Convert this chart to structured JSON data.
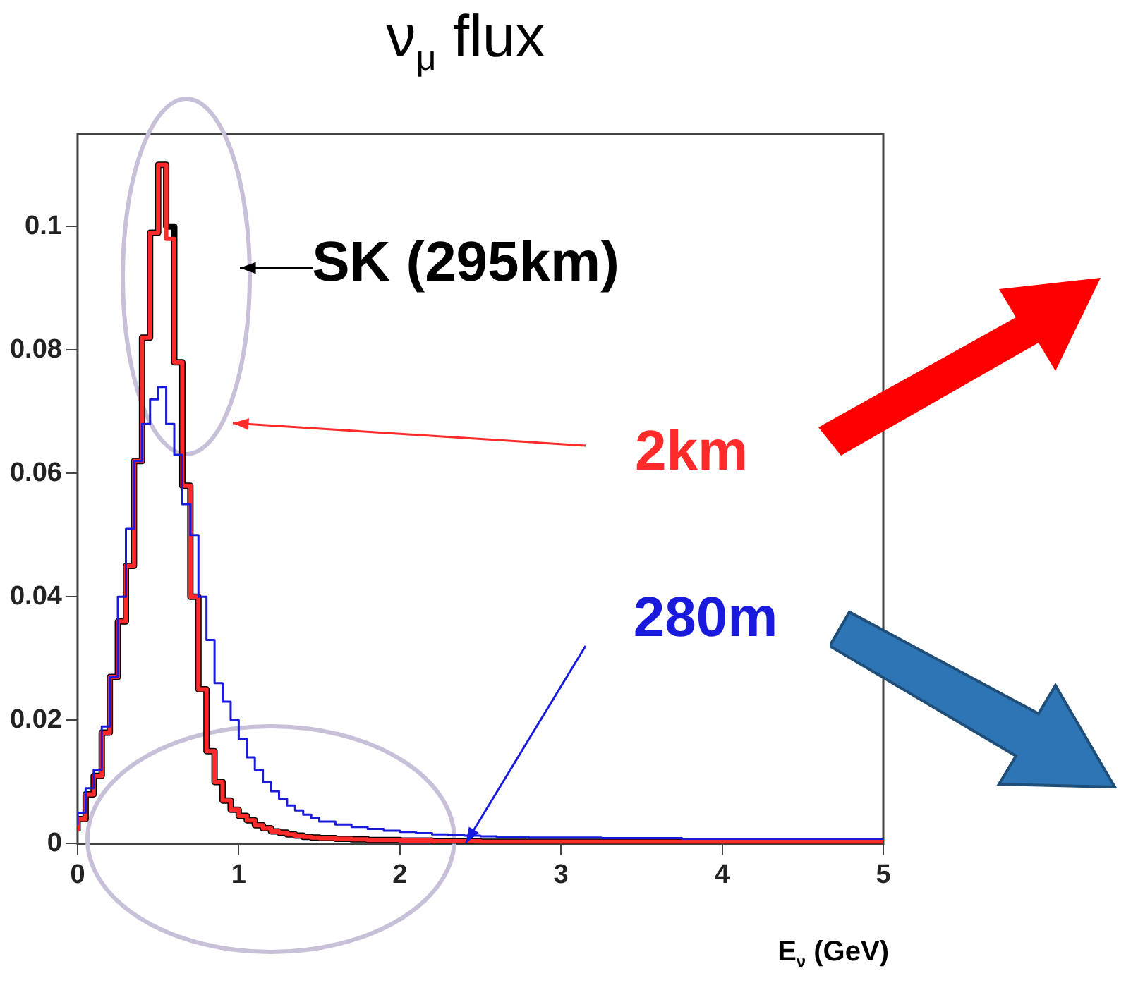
{
  "chart_data": {
    "type": "step",
    "title": "ν$_{μ}$ flux",
    "xlabel": "E$_{ν}$ (GeV)",
    "x": [
      0,
      0.05,
      0.1,
      0.15,
      0.2,
      0.25,
      0.3,
      0.35,
      0.4,
      0.45,
      0.5,
      0.55,
      0.6,
      0.65,
      0.7,
      0.75,
      0.8,
      0.85,
      0.9,
      0.95,
      1,
      1.05,
      1.1,
      1.15,
      1.2,
      1.25,
      1.3,
      1.35,
      1.4,
      1.45,
      1.5,
      1.6,
      1.7,
      1.8,
      1.9,
      2,
      2.1,
      2.2,
      2.3,
      2.4,
      2.5,
      2.6,
      2.7,
      2.8,
      2.9,
      3,
      3.25,
      3.5,
      3.75,
      4,
      4.25,
      4.5,
      4.75,
      5
    ],
    "series": [
      {
        "name": "SK (295km)",
        "color": "#000000",
        "values": [
          0.002,
          0.004,
          0.008,
          0.011,
          0.018,
          0.027,
          0.036,
          0.045,
          0.062,
          0.082,
          0.099,
          0.11,
          0.1,
          0.078,
          0.058,
          0.04,
          0.025,
          0.015,
          0.01,
          0.007,
          0.0055,
          0.0045,
          0.0038,
          0.003,
          0.0025,
          0.002,
          0.0018,
          0.0015,
          0.0013,
          0.0011,
          0.001,
          0.0009,
          0.0008,
          0.0007,
          0.0006,
          0.0006,
          0.0005,
          0.0005,
          0.0004,
          0.0004,
          0.0004,
          0.0003,
          0.0003,
          0.0003,
          0.0003,
          0.0003,
          0.0003,
          0.0003,
          0.0003,
          0.0003,
          0.0003,
          0.0003,
          0.0003,
          0.0003
        ]
      },
      {
        "name": "2km",
        "color": "#ff2a2a",
        "values": [
          0.002,
          0.004,
          0.008,
          0.011,
          0.018,
          0.027,
          0.036,
          0.045,
          0.062,
          0.082,
          0.099,
          0.11,
          0.098,
          0.078,
          0.058,
          0.04,
          0.025,
          0.015,
          0.01,
          0.007,
          0.0055,
          0.0045,
          0.0038,
          0.003,
          0.0025,
          0.002,
          0.0018,
          0.0015,
          0.0013,
          0.0011,
          0.001,
          0.0009,
          0.0008,
          0.0007,
          0.0006,
          0.0006,
          0.0005,
          0.0005,
          0.0004,
          0.0004,
          0.0004,
          0.0003,
          0.0003,
          0.0003,
          0.0003,
          0.0003,
          0.0003,
          0.0003,
          0.0003,
          0.0003,
          0.0003,
          0.0003,
          0.0003,
          0.0003
        ]
      },
      {
        "name": "280m",
        "color": "#1a1adc",
        "values": [
          0.003,
          0.005,
          0.009,
          0.012,
          0.019,
          0.027,
          0.04,
          0.051,
          0.062,
          0.068,
          0.072,
          0.074,
          0.068,
          0.063,
          0.055,
          0.05,
          0.04,
          0.033,
          0.026,
          0.023,
          0.02,
          0.017,
          0.014,
          0.012,
          0.01,
          0.0085,
          0.0073,
          0.0062,
          0.0054,
          0.0047,
          0.0042,
          0.0036,
          0.0031,
          0.0027,
          0.0024,
          0.0021,
          0.0019,
          0.0017,
          0.0015,
          0.0014,
          0.0013,
          0.0012,
          0.0011,
          0.0011,
          0.001,
          0.001,
          0.001,
          0.0009,
          0.0009,
          0.0008,
          0.0008,
          0.0008,
          0.0008,
          0.0008
        ]
      }
    ],
    "xlim": [
      0,
      5
    ],
    "xticks": [
      0,
      1,
      2,
      3,
      4,
      5
    ],
    "ylim": [
      0,
      0.115
    ],
    "yticks": [
      0,
      0.02,
      0.04,
      0.06,
      0.08,
      0.1
    ]
  }
}
